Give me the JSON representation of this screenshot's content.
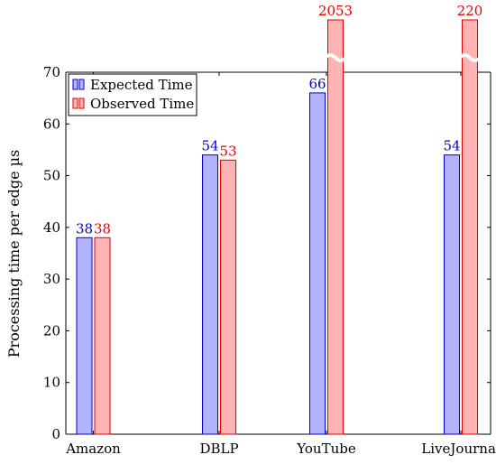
{
  "chart_data": {
    "type": "bar",
    "categories": [
      "Amazon",
      "DBLP",
      "YouTube",
      "LiveJournal"
    ],
    "series": [
      {
        "name": "Expected Time",
        "values": [
          38,
          54,
          66,
          54
        ],
        "color": "#0000cc",
        "fill": "#b3b3ff"
      },
      {
        "name": "Observed Time",
        "values": [
          38,
          53,
          2053,
          220
        ],
        "color": "#e00000",
        "fill": "#ffb3b3"
      }
    ],
    "ylabel": "Processing time per edge µs",
    "ylim": [
      0,
      70
    ],
    "yticks": [
      0,
      10,
      20,
      30,
      40,
      50,
      60,
      70
    ],
    "axis_break": true,
    "grid": false,
    "legend_position": "top-left"
  }
}
